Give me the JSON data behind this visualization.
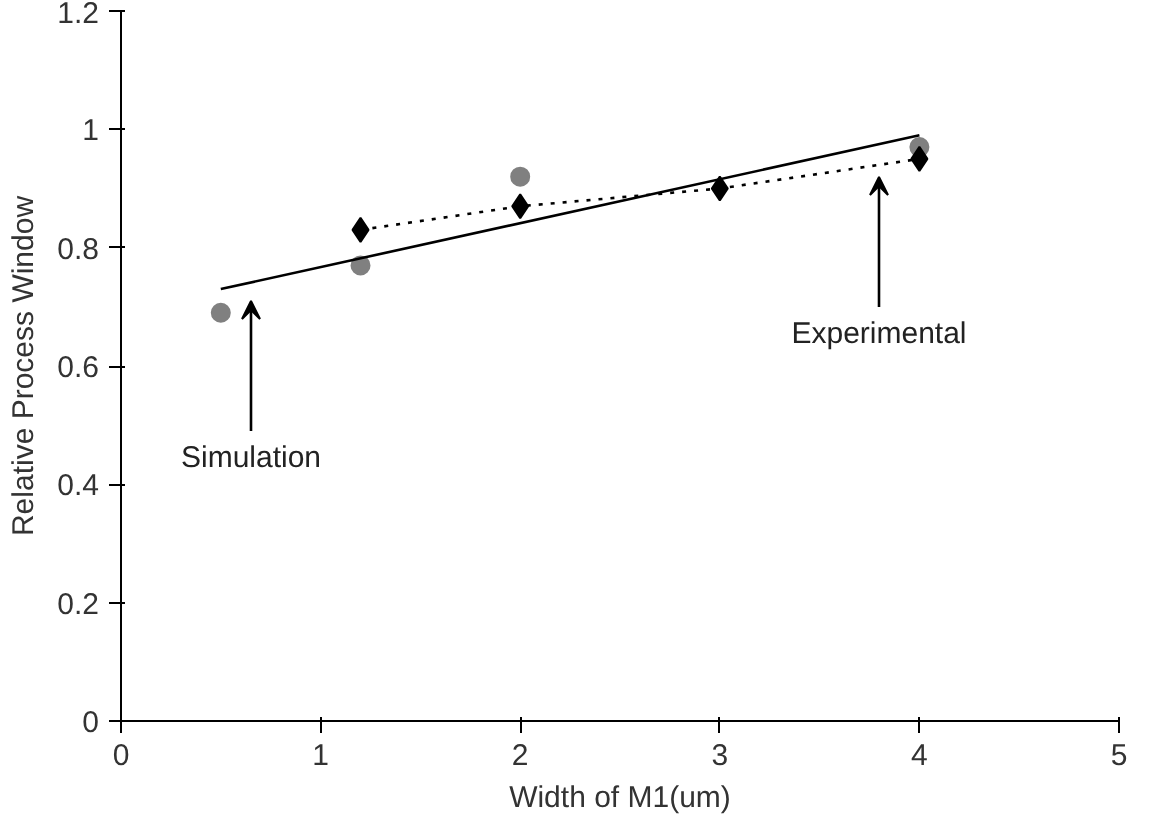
{
  "chart_data": {
    "type": "scatter",
    "xlabel": "Width of M1(um)",
    "ylabel": "Relative Process Window",
    "xlim": [
      0,
      5
    ],
    "ylim": [
      0,
      1.2
    ],
    "xticks": [
      0,
      1,
      2,
      3,
      4,
      5
    ],
    "yticks": [
      0,
      0.2,
      0.4,
      0.6,
      0.8,
      1,
      1.2
    ],
    "grid": false,
    "series": [
      {
        "color": "#808080",
        "marker": "circle",
        "x": [
          0.5,
          1.2,
          2,
          4
        ],
        "values": [
          0.69,
          0.77,
          0.92,
          0.97
        ]
      },
      {
        "type": "line",
        "color": "#000000",
        "marker": "diamond",
        "line_style": "dotted",
        "x": [
          1.2,
          2,
          3,
          4
        ],
        "values": [
          0.83,
          0.87,
          0.9,
          0.95
        ]
      },
      {
        "type": "line",
        "color": "#000000",
        "marker": "none",
        "line_style": "solid",
        "x": [
          0.5,
          4
        ],
        "values": [
          0.73,
          0.99
        ]
      }
    ],
    "annotations": [
      "Simulation",
      "Experimental"
    ]
  }
}
